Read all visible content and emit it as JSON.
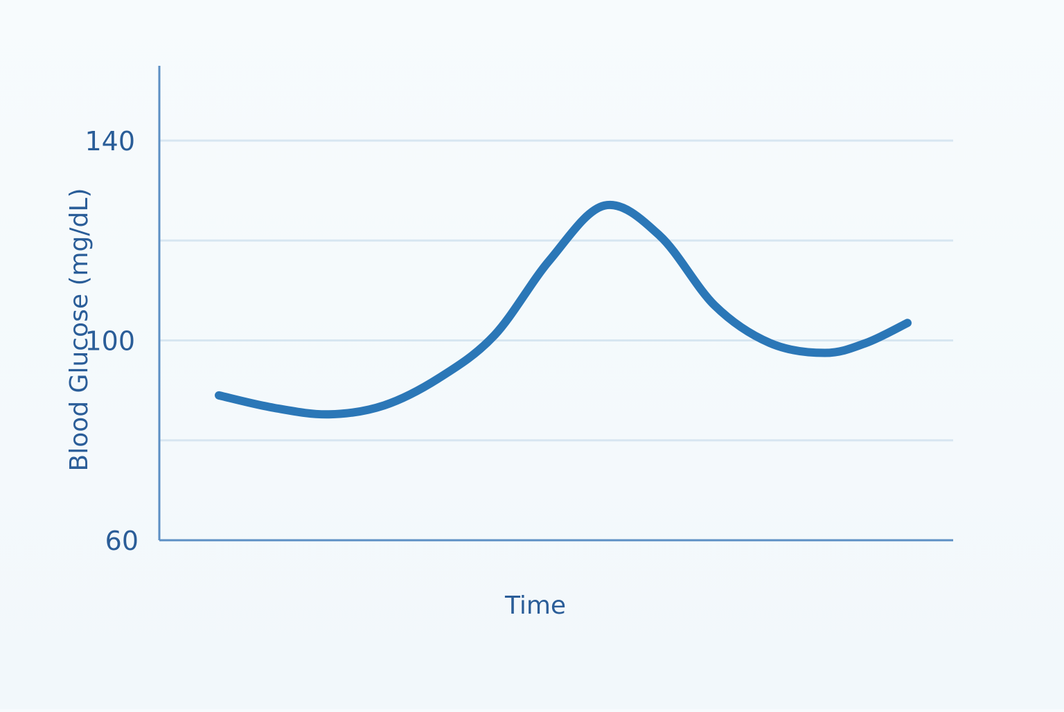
{
  "chart_data": {
    "type": "line",
    "title": "",
    "xlabel": "Time",
    "ylabel": "Blood Glucose (mg/dL)",
    "ylim": [
      60,
      150
    ],
    "yticks": [
      60,
      100,
      140
    ],
    "grid": true,
    "series": [
      {
        "x": [
          0.0,
          0.08,
          0.16,
          0.24,
          0.32,
          0.4,
          0.48,
          0.56,
          0.64,
          0.72,
          0.8,
          0.88,
          0.94,
          1.0
        ],
        "values": [
          89,
          86.5,
          85.2,
          87,
          92.5,
          101,
          116,
          127,
          121,
          107,
          99.5,
          97.5,
          99.5,
          103.5
        ]
      }
    ]
  },
  "colors": {
    "line": "#2b77b7",
    "axis": "#5c8fc4",
    "grid": "#d7e6f1",
    "text": "#2a5d98"
  }
}
